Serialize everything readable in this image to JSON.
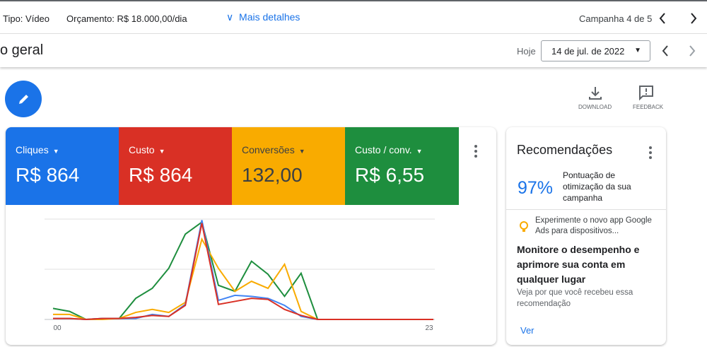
{
  "header": {
    "type_label": "Tipo: Vídeo",
    "budget": "Orçamento: R$ 18.000,00/dia",
    "more": "Mais detalhes",
    "campaign": "Campanha 4 de 5"
  },
  "subheader": {
    "title": "o geral",
    "today": "Hoje",
    "date": "14 de jul. de 2022"
  },
  "toolbar": {
    "download": "DOWNLOAD",
    "feedback": "FEEDBACK"
  },
  "metrics": [
    {
      "label": "Cliques",
      "value": "R$ 864",
      "color": "#1a73e8"
    },
    {
      "label": "Custo",
      "value": "R$ 864",
      "color": "#d93025"
    },
    {
      "label": "Conversões",
      "value": "132,00",
      "color": "#f9ab00"
    },
    {
      "label": "Custo / conv.",
      "value": "R$ 6,55",
      "color": "#1e8e3e"
    }
  ],
  "chart": {
    "type": "line",
    "ylim": [
      0,
      100
    ],
    "categories": [
      "00",
      null,
      null,
      null,
      null,
      null,
      null,
      null,
      null,
      null,
      null,
      null,
      null,
      null,
      null,
      null,
      null,
      null,
      null,
      null,
      null,
      null,
      null,
      "23"
    ],
    "series": [
      {
        "color": "#1e8e3e",
        "values": [
          11,
          8,
          0,
          1,
          1,
          21,
          31,
          51,
          85,
          97,
          34,
          28,
          58,
          45,
          23,
          46,
          0,
          0,
          0,
          0,
          0,
          0,
          0,
          0
        ]
      },
      {
        "color": "#f9ab00",
        "values": [
          5,
          5,
          0,
          0,
          1,
          7,
          10,
          7,
          17,
          80,
          51,
          28,
          38,
          31,
          55,
          8,
          0,
          0,
          0,
          0,
          0,
          0,
          0,
          0
        ]
      },
      {
        "color": "#4285f4",
        "values": [
          1,
          1,
          0,
          1,
          1,
          1,
          5,
          3,
          15,
          99,
          19,
          24,
          23,
          21,
          14,
          3,
          0,
          0,
          0,
          0,
          0,
          0,
          0,
          0
        ]
      },
      {
        "color": "#d93025",
        "values": [
          1,
          1,
          0,
          1,
          1,
          2,
          4,
          3,
          14,
          96,
          15,
          18,
          21,
          20,
          10,
          4,
          0,
          0,
          0,
          0,
          0,
          0,
          0,
          0
        ]
      }
    ]
  },
  "recommendations": {
    "title": "Recomendações",
    "score": "97%",
    "score_text": "Pontuação de otimização da sua campanha",
    "tip": "Experimente o novo app Google Ads para dispositivos...",
    "headline": "Monitore o desempenho e aprimore sua conta em qualquer lugar",
    "why": "Veja por que você recebeu essa recomendação",
    "action": "Ver"
  }
}
